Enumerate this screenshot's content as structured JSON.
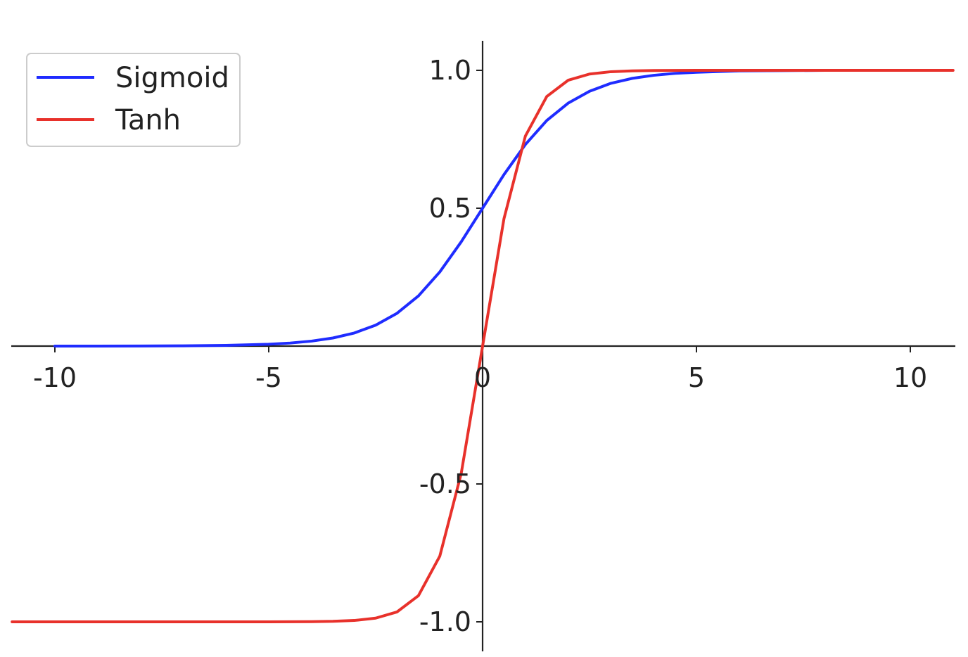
{
  "chart_data": {
    "type": "line",
    "title": "",
    "xlabel": "",
    "ylabel": "",
    "xlim": [
      -11,
      11
    ],
    "ylim": [
      -1.1,
      1.1
    ],
    "x_ticks": [
      {
        "value": -10,
        "label": "-10"
      },
      {
        "value": -5,
        "label": "-5"
      },
      {
        "value": 0,
        "label": "0"
      },
      {
        "value": 5,
        "label": "5"
      },
      {
        "value": 10,
        "label": "10"
      }
    ],
    "y_ticks": [
      {
        "value": -1.0,
        "label": "-1.0"
      },
      {
        "value": -0.5,
        "label": "-0.5"
      },
      {
        "value": 0.5,
        "label": "0.5"
      },
      {
        "value": 1.0,
        "label": "1.0"
      }
    ],
    "grid": false,
    "legend_position": "top-left",
    "series": [
      {
        "name": "Sigmoid",
        "color": "#1f2cff",
        "x": [
          -10,
          -9,
          -8,
          -7,
          -6,
          -5,
          -4.5,
          -4,
          -3.5,
          -3,
          -2.5,
          -2,
          -1.5,
          -1,
          -0.5,
          0,
          0.5,
          1,
          1.5,
          2,
          2.5,
          3,
          3.5,
          4,
          4.5,
          5,
          6,
          7,
          8,
          9,
          10
        ],
        "y": [
          4.54e-05,
          0.000123,
          0.000335,
          0.000911,
          0.00247,
          0.00669,
          0.011,
          0.018,
          0.0293,
          0.0474,
          0.0759,
          0.119,
          0.182,
          0.269,
          0.378,
          0.5,
          0.622,
          0.731,
          0.818,
          0.881,
          0.924,
          0.953,
          0.971,
          0.982,
          0.989,
          0.993,
          0.998,
          0.999,
          1.0,
          1.0,
          1.0
        ]
      },
      {
        "name": "Tanh",
        "color": "#e8312b",
        "x": [
          -11,
          -10,
          -9,
          -8,
          -7,
          -6,
          -5.5,
          -5,
          -4.5,
          -4,
          -3.5,
          -3,
          -2.5,
          -2,
          -1.5,
          -1,
          -0.5,
          0,
          0.5,
          1,
          1.5,
          2,
          2.5,
          3,
          3.5,
          4,
          4.5,
          5,
          6,
          7,
          8,
          9,
          10,
          11
        ],
        "y": [
          -1.0,
          -1.0,
          -1.0,
          -1.0,
          -0.999998,
          -0.99999,
          -0.99997,
          -0.99991,
          -0.99975,
          -0.99933,
          -0.99818,
          -0.99505,
          -0.98661,
          -0.96403,
          -0.90515,
          -0.76159,
          -0.46212,
          0.0,
          0.46212,
          0.76159,
          0.90515,
          0.96403,
          0.98661,
          0.99505,
          0.99818,
          0.99933,
          0.99975,
          0.99991,
          0.99999,
          0.999998,
          1.0,
          1.0,
          1.0,
          1.0
        ]
      }
    ]
  }
}
